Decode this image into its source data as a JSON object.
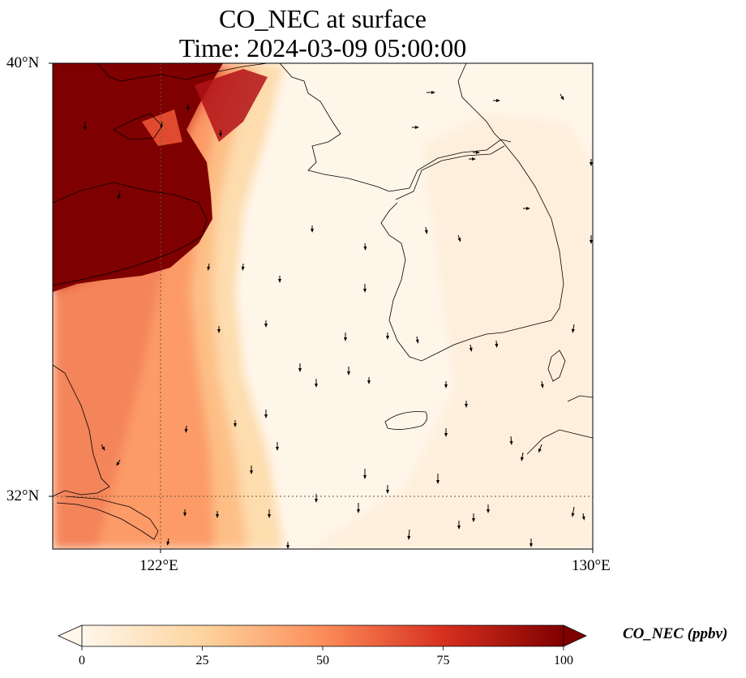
{
  "map": {
    "title": "CO_NEC at surface",
    "subtitle": "Time: 2024-03-09 05:00:00",
    "lat_ticks": [
      "40°N",
      "32°N"
    ],
    "lon_ticks": [
      "122°E",
      "130°E"
    ],
    "extent": {
      "lon_min": 120,
      "lon_max": 130,
      "lat_min": 31,
      "lat_max": 40
    },
    "gridlines": {
      "lons": [
        122
      ],
      "lats": [
        32
      ],
      "style": "dotted"
    },
    "layers": [
      "CO concentration field",
      "coastlines",
      "wind vectors"
    ]
  },
  "colorbar": {
    "label": "CO_NEC (ppbv)",
    "ticks": [
      "0",
      "25",
      "50",
      "75",
      "100"
    ],
    "range": [
      0,
      100
    ],
    "extend": "both",
    "colormap": "OrRd",
    "colors": [
      "#fff7ec",
      "#fdd49e",
      "#fc8d59",
      "#d7301f",
      "#7f0000"
    ]
  }
}
